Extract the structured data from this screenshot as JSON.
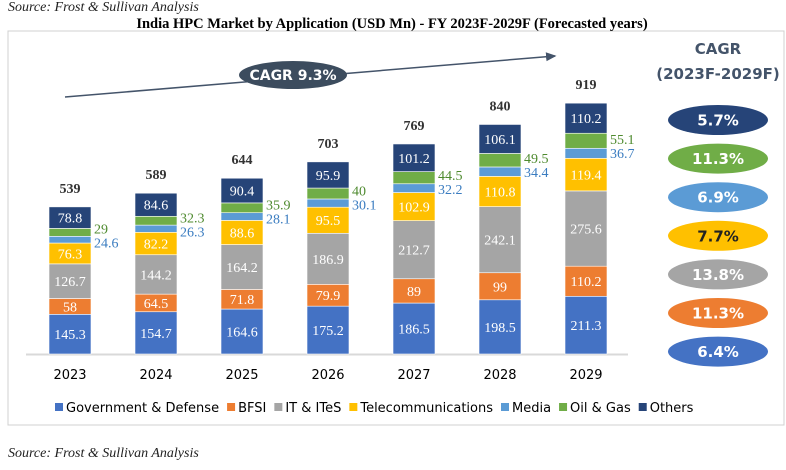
{
  "source_top": "Source: Frost & Sullivan Analysis",
  "source_bottom": "Source: Frost & Sullivan Analysis",
  "chart_data": {
    "type": "bar",
    "stacked": true,
    "title": "India HPC Market by Application (USD Mn) - FY 2023F-2029F (Forecasted years)",
    "categories": [
      "2023",
      "2024",
      "2025",
      "2026",
      "2027",
      "2028",
      "2029"
    ],
    "totals": [
      539,
      589,
      644,
      703,
      769,
      840,
      919
    ],
    "series": [
      {
        "name": "Government & Defense",
        "color": "#4472C4",
        "values": [
          145.3,
          154.7,
          164.6,
          175.2,
          186.5,
          198.5,
          211.3
        ],
        "cagr": "6.4%"
      },
      {
        "name": "BFSI",
        "color": "#ED7D31",
        "values": [
          58,
          64.5,
          71.8,
          79.9,
          89,
          99,
          110.2
        ],
        "cagr": "11.3%"
      },
      {
        "name": "IT & ITeS",
        "color": "#A5A5A5",
        "values": [
          126.7,
          144.2,
          164.2,
          186.9,
          212.7,
          242.1,
          275.6
        ],
        "cagr": "13.8%"
      },
      {
        "name": "Telecommunications",
        "color": "#FFC000",
        "values": [
          76.3,
          82.2,
          88.6,
          95.5,
          102.9,
          110.8,
          119.4
        ],
        "cagr": "7.7%"
      },
      {
        "name": "Media",
        "color": "#5B9BD5",
        "values": [
          24.6,
          26.3,
          28.1,
          30.1,
          32.2,
          34.4,
          36.7
        ],
        "cagr": "6.9%"
      },
      {
        "name": "Oil & Gas",
        "color": "#70AD47",
        "values": [
          29,
          32.3,
          35.9,
          40,
          44.5,
          49.5,
          55.1
        ],
        "cagr": "11.3%"
      },
      {
        "name": "Others",
        "color": "#264478",
        "values": [
          78.8,
          84.6,
          90.4,
          95.9,
          101.2,
          106.1,
          110.2
        ],
        "cagr": "5.7%"
      }
    ],
    "overall_cagr_label": "CAGR 9.3%",
    "cagr_heading": [
      "CAGR",
      "(2023F-2029F)"
    ],
    "legend_position": "bottom",
    "grid": false
  }
}
